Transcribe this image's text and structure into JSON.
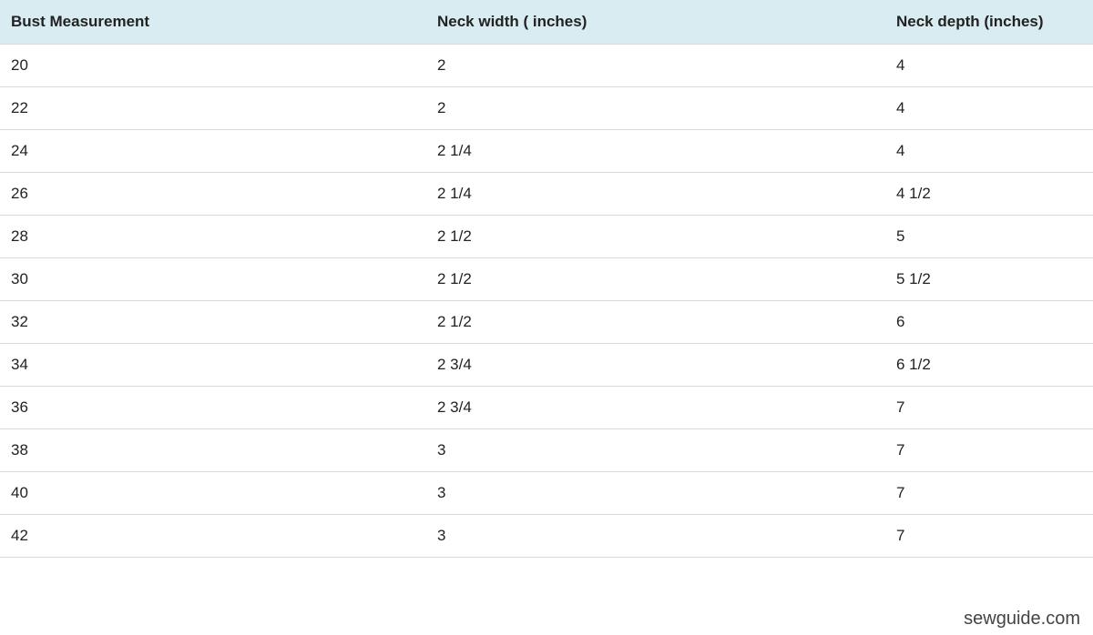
{
  "table": {
    "type": "table",
    "header_bg": "#d9ecf2",
    "row_border_color": "#d9d9d9",
    "text_color": "#222222",
    "background_color": "#ffffff",
    "header_fontsize": 17,
    "cell_fontsize": 17,
    "header_fontweight": "bold",
    "columns": [
      {
        "label": "Bust Measurement",
        "width_pct": 39,
        "align": "left"
      },
      {
        "label": "Neck width ( inches)",
        "width_pct": 42,
        "align": "left"
      },
      {
        "label": "Neck depth (inches)",
        "width_pct": 19,
        "align": "left"
      }
    ],
    "rows": [
      [
        "20",
        "2",
        "4"
      ],
      [
        "22",
        "2",
        "4"
      ],
      [
        "24",
        "2 1/4",
        "4"
      ],
      [
        "26",
        "2 1/4",
        "4 1/2"
      ],
      [
        "28",
        "2 1/2",
        "5"
      ],
      [
        "30",
        "2 1/2",
        "5 1/2"
      ],
      [
        "32",
        "2 1/2",
        "6"
      ],
      [
        "34",
        "2 3/4",
        "6 1/2"
      ],
      [
        "36",
        "2 3/4",
        "7"
      ],
      [
        "38",
        "3",
        "7"
      ],
      [
        "40",
        "3",
        "7"
      ],
      [
        "42",
        "3",
        "7"
      ]
    ]
  },
  "watermark": {
    "text": "sewguide.com",
    "color": "#444444",
    "fontsize": 20
  }
}
